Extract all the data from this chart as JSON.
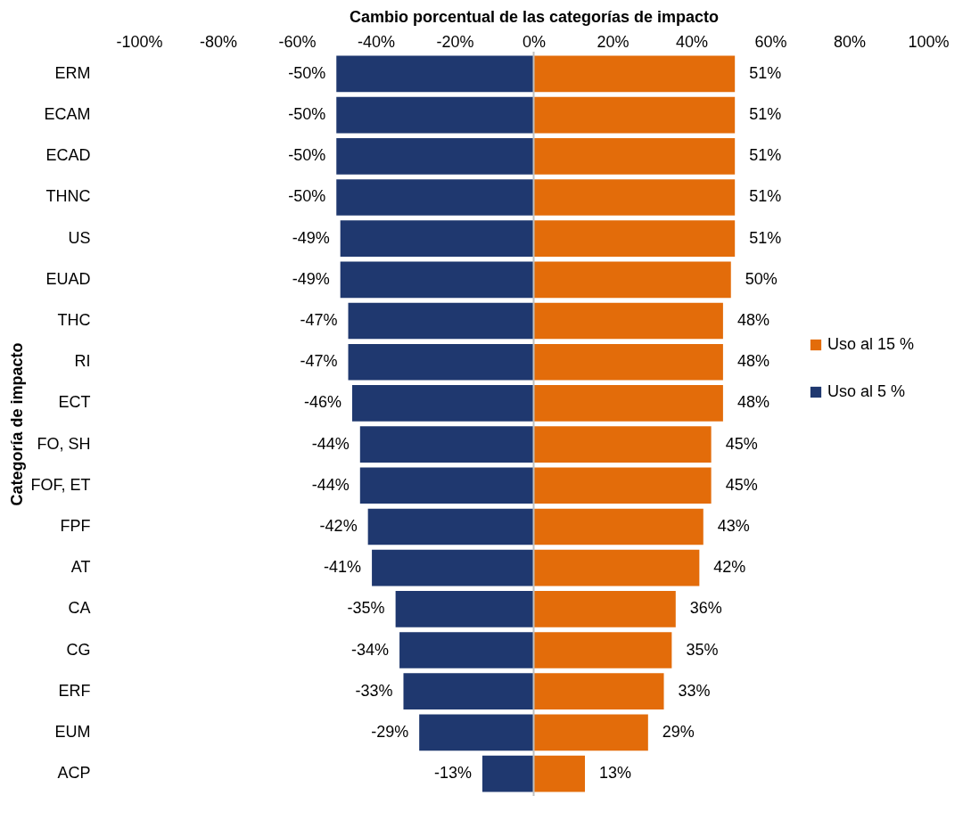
{
  "chart_data": {
    "type": "bar",
    "orientation": "horizontal",
    "stacked": true,
    "xlabel": "Cambio porcentual de las categorías de impacto",
    "ylabel": "Categoría de impacto",
    "categories": [
      "ERM",
      "ECAM",
      "ECAD",
      "THNC",
      "US",
      "EUAD",
      "THC",
      "RI",
      "ECT",
      "FO, SH",
      "FOF, ET",
      "FPF",
      "AT",
      "CA",
      "CG",
      "ERF",
      "EUM",
      "ACP"
    ],
    "series": [
      {
        "name": "Uso al 15 %",
        "color": "#e36c0a",
        "values": [
          51,
          51,
          51,
          51,
          51,
          50,
          48,
          48,
          48,
          45,
          45,
          43,
          42,
          36,
          35,
          33,
          29,
          13
        ],
        "value_labels": [
          "51%",
          "51%",
          "51%",
          "51%",
          "51%",
          "50%",
          "48%",
          "48%",
          "48%",
          "45%",
          "45%",
          "43%",
          "42%",
          "36%",
          "35%",
          "33%",
          "29%",
          "13%"
        ]
      },
      {
        "name": "Uso al 5 %",
        "color": "#1f386f",
        "values": [
          -50,
          -50,
          -50,
          -50,
          -49,
          -49,
          -47,
          -47,
          -46,
          -44,
          -44,
          -42,
          -41,
          -35,
          -34,
          -33,
          -29,
          -13
        ],
        "value_labels": [
          "-50%",
          "-50%",
          "-50%",
          "-50%",
          "-49%",
          "-49%",
          "-47%",
          "-47%",
          "-46%",
          "-44%",
          "-44%",
          "-42%",
          "-41%",
          "-35%",
          "-34%",
          "-33%",
          "-29%",
          "-13%"
        ]
      }
    ],
    "xlim": [
      -100,
      100
    ],
    "xticks": [
      {
        "value": -100,
        "label": "-100%"
      },
      {
        "value": -80,
        "label": "-80%"
      },
      {
        "value": -60,
        "label": "-60%"
      },
      {
        "value": -40,
        "label": "-40%"
      },
      {
        "value": -20,
        "label": "-20%"
      },
      {
        "value": 0,
        "label": "0%"
      },
      {
        "value": 20,
        "label": "20%"
      },
      {
        "value": 40,
        "label": "40%"
      },
      {
        "value": 60,
        "label": "60%"
      },
      {
        "value": 80,
        "label": "80%"
      },
      {
        "value": 100,
        "label": "100%"
      }
    ],
    "ref_lines": [
      {
        "axis": "x",
        "value": 0,
        "color": "#bfbfbf"
      }
    ],
    "grid": false,
    "legend": "right"
  }
}
